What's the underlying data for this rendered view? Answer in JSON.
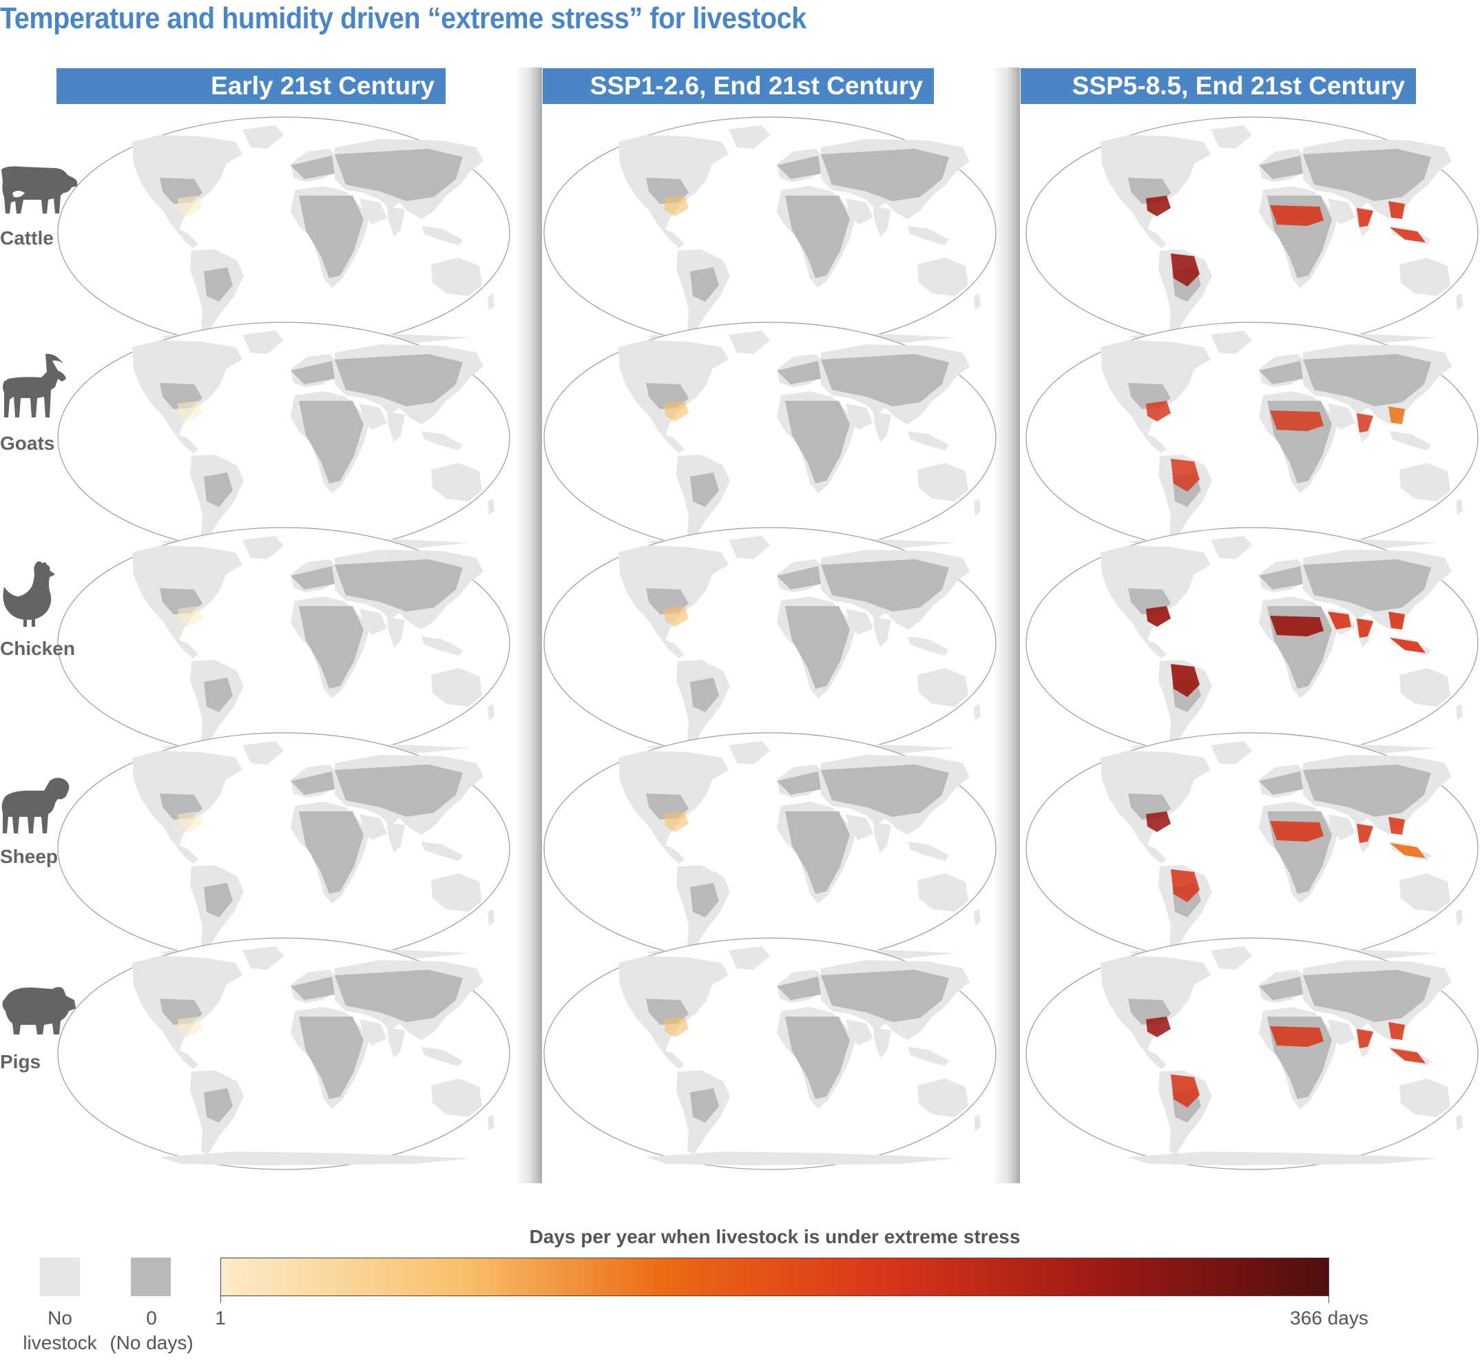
{
  "title": "Temperature and humidity driven “extreme stress” for livestock",
  "columns": [
    {
      "label": "Early 21st Century"
    },
    {
      "label": "SSP1-2.6, End 21st Century"
    },
    {
      "label": "SSP5-8.5, End 21st Century"
    }
  ],
  "rows": [
    {
      "label": "Cattle",
      "icon": "cow-icon"
    },
    {
      "label": "Goats",
      "icon": "goat-icon"
    },
    {
      "label": "Chicken",
      "icon": "chicken-icon"
    },
    {
      "label": "Sheep",
      "icon": "sheep-icon"
    },
    {
      "label": "Pigs",
      "icon": "pig-icon"
    }
  ],
  "legend": {
    "title": "Days per year when livestock is under extreme stress",
    "no_livestock_line1": "No",
    "no_livestock_line2": "livestock",
    "zero_line1": "0",
    "zero_line2": "(No days)",
    "scale_min": "1",
    "scale_max": "366 days"
  },
  "colors": {
    "header_bg": "#4a86c6",
    "title": "#4a86c6",
    "no_livestock": "#e6e6e6",
    "zero_days": "#b9b9b9",
    "scale": [
      "#fdebc9",
      "#f8c06a",
      "#ec6a14",
      "#d8361a",
      "#9c1914",
      "#4f0f0f"
    ]
  },
  "stress_level": [
    [
      0.05,
      0.12,
      0.75
    ],
    [
      0.04,
      0.1,
      0.62
    ],
    [
      0.05,
      0.14,
      0.82
    ],
    [
      0.05,
      0.12,
      0.7
    ],
    [
      0.04,
      0.1,
      0.72
    ]
  ]
}
